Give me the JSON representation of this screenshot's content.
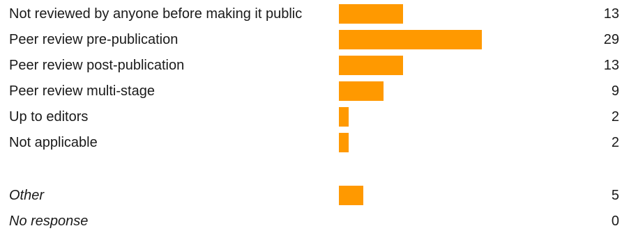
{
  "chart_data": {
    "type": "bar",
    "orientation": "horizontal",
    "bar_color": "#ff9900",
    "xlim": [
      0,
      29
    ],
    "categories": [
      "Not reviewed by anyone before making it public",
      "Peer review pre-publication",
      "Peer review post-publication",
      "Peer review multi-stage",
      "Up to editors",
      "Not applicable",
      "Other",
      "No response"
    ],
    "values": [
      13,
      29,
      13,
      9,
      2,
      2,
      5,
      0
    ],
    "italic": [
      false,
      false,
      false,
      false,
      false,
      false,
      true,
      true
    ]
  }
}
